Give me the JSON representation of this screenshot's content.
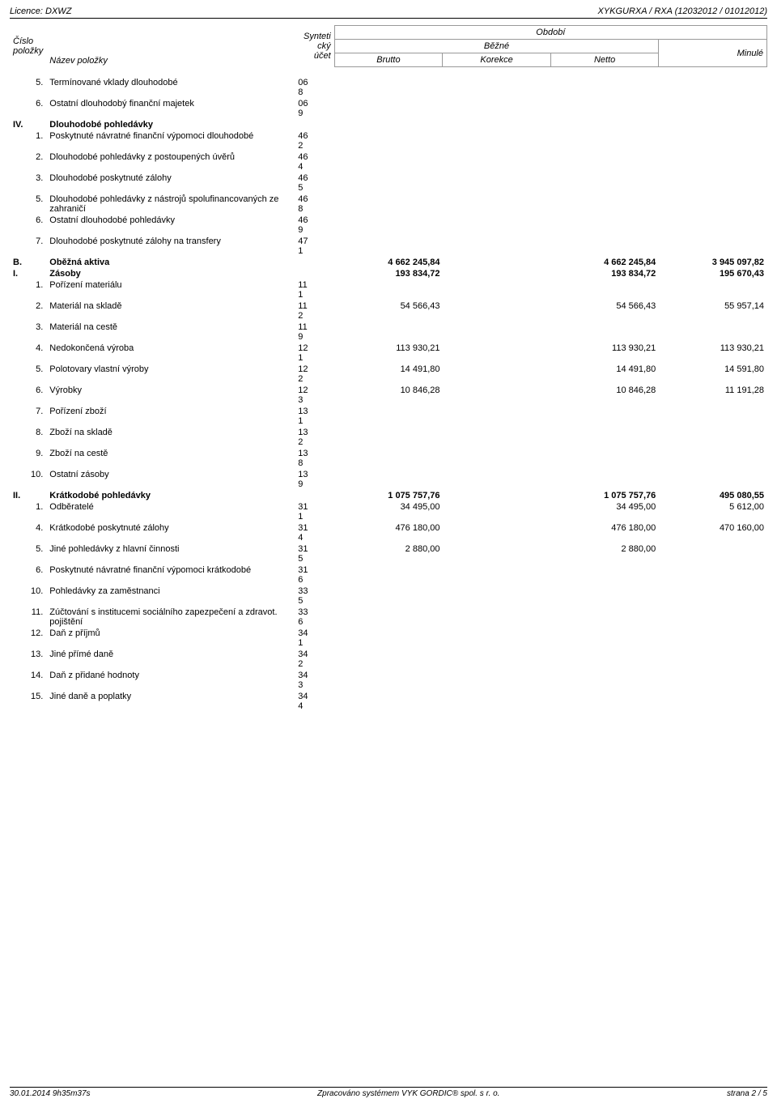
{
  "topbar": {
    "licence": "Licence: DXWZ",
    "right": "XYKGURXA / RXA (12032012 / 01012012)"
  },
  "header": {
    "cislo": "Číslo",
    "polozky": "položky",
    "nazev": "Název položky",
    "synteticky1": "Synteti",
    "synteticky2": "cký",
    "ucet": "účet",
    "obdobi": "Období",
    "bezne": "Běžné",
    "minule": "Minulé",
    "brutto": "Brutto",
    "korekce": "Korekce",
    "netto": "Netto"
  },
  "rows": [
    {
      "cislo": "",
      "sub": "5.",
      "nazev": "Termínované vklady dlouhodobé",
      "ucet1": "06",
      "ucet2": "8",
      "brutto": "",
      "korekce": "",
      "netto": "",
      "minule": ""
    },
    {
      "cislo": "",
      "sub": "6.",
      "nazev": "Ostatní dlouhodobý finanční majetek",
      "ucet1": "06",
      "ucet2": "9",
      "brutto": "",
      "korekce": "",
      "netto": "",
      "minule": ""
    },
    {
      "cislo": "IV.",
      "sub": "",
      "nazev": "Dlouhodobé pohledávky",
      "ucet1": "",
      "ucet2": "",
      "brutto": "",
      "korekce": "",
      "netto": "",
      "minule": "",
      "bold": true
    },
    {
      "cislo": "",
      "sub": "1.",
      "nazev": "Poskytnuté návratné finanční výpomoci dlouhodobé",
      "ucet1": "46",
      "ucet2": "2",
      "brutto": "",
      "korekce": "",
      "netto": "",
      "minule": ""
    },
    {
      "cislo": "",
      "sub": "2.",
      "nazev": "Dlouhodobé pohledávky z postoupených úvěrů",
      "ucet1": "46",
      "ucet2": "4",
      "brutto": "",
      "korekce": "",
      "netto": "",
      "minule": ""
    },
    {
      "cislo": "",
      "sub": "3.",
      "nazev": "Dlouhodobé poskytnuté zálohy",
      "ucet1": "46",
      "ucet2": "5",
      "brutto": "",
      "korekce": "",
      "netto": "",
      "minule": ""
    },
    {
      "cislo": "",
      "sub": "5.",
      "nazev": "Dlouhodobé pohledávky z nástrojů spolufinancovaných ze zahraničí",
      "ucet1": "46",
      "ucet2": "8",
      "brutto": "",
      "korekce": "",
      "netto": "",
      "minule": ""
    },
    {
      "cislo": "",
      "sub": "6.",
      "nazev": "Ostatní dlouhodobé pohledávky",
      "ucet1": "46",
      "ucet2": "9",
      "brutto": "",
      "korekce": "",
      "netto": "",
      "minule": ""
    },
    {
      "cislo": "",
      "sub": "7.",
      "nazev": "Dlouhodobé poskytnuté zálohy na transfery",
      "ucet1": "47",
      "ucet2": "1",
      "brutto": "",
      "korekce": "",
      "netto": "",
      "minule": ""
    },
    {
      "cislo": "B.",
      "sub": "",
      "nazev": "Oběžná aktiva",
      "ucet1": "",
      "ucet2": "",
      "brutto": "4 662 245,84",
      "korekce": "",
      "netto": "4 662 245,84",
      "minule": "3 945 097,82",
      "bold": true,
      "section": true
    },
    {
      "cislo": "I.",
      "sub": "",
      "nazev": "Zásoby",
      "ucet1": "",
      "ucet2": "",
      "brutto": "193 834,72",
      "korekce": "",
      "netto": "193 834,72",
      "minule": "195 670,43",
      "bold": true
    },
    {
      "cislo": "",
      "sub": "1.",
      "nazev": "Pořízení materiálu",
      "ucet1": "11",
      "ucet2": "1",
      "brutto": "",
      "korekce": "",
      "netto": "",
      "minule": ""
    },
    {
      "cislo": "",
      "sub": "2.",
      "nazev": "Materiál na skladě",
      "ucet1": "11",
      "ucet2": "2",
      "brutto": "54 566,43",
      "korekce": "",
      "netto": "54 566,43",
      "minule": "55 957,14"
    },
    {
      "cislo": "",
      "sub": "3.",
      "nazev": "Materiál na cestě",
      "ucet1": "11",
      "ucet2": "9",
      "brutto": "",
      "korekce": "",
      "netto": "",
      "minule": ""
    },
    {
      "cislo": "",
      "sub": "4.",
      "nazev": "Nedokončená výroba",
      "ucet1": "12",
      "ucet2": "1",
      "brutto": "113 930,21",
      "korekce": "",
      "netto": "113 930,21",
      "minule": "113 930,21"
    },
    {
      "cislo": "",
      "sub": "5.",
      "nazev": "Polotovary vlastní výroby",
      "ucet1": "12",
      "ucet2": "2",
      "brutto": "14 491,80",
      "korekce": "",
      "netto": "14 491,80",
      "minule": "14 591,80"
    },
    {
      "cislo": "",
      "sub": "6.",
      "nazev": "Výrobky",
      "ucet1": "12",
      "ucet2": "3",
      "brutto": "10 846,28",
      "korekce": "",
      "netto": "10 846,28",
      "minule": "11 191,28"
    },
    {
      "cislo": "",
      "sub": "7.",
      "nazev": "Pořízení zboží",
      "ucet1": "13",
      "ucet2": "1",
      "brutto": "",
      "korekce": "",
      "netto": "",
      "minule": ""
    },
    {
      "cislo": "",
      "sub": "8.",
      "nazev": "Zboží na skladě",
      "ucet1": "13",
      "ucet2": "2",
      "brutto": "",
      "korekce": "",
      "netto": "",
      "minule": ""
    },
    {
      "cislo": "",
      "sub": "9.",
      "nazev": "Zboží na cestě",
      "ucet1": "13",
      "ucet2": "8",
      "brutto": "",
      "korekce": "",
      "netto": "",
      "minule": ""
    },
    {
      "cislo": "",
      "sub": "10.",
      "nazev": "Ostatní zásoby",
      "ucet1": "13",
      "ucet2": "9",
      "brutto": "",
      "korekce": "",
      "netto": "",
      "minule": ""
    },
    {
      "cislo": "II.",
      "sub": "",
      "nazev": "Krátkodobé pohledávky",
      "ucet1": "",
      "ucet2": "",
      "brutto": "1 075 757,76",
      "korekce": "",
      "netto": "1 075 757,76",
      "minule": "495 080,55",
      "bold": true
    },
    {
      "cislo": "",
      "sub": "1.",
      "nazev": "Odběratelé",
      "ucet1": "31",
      "ucet2": "1",
      "brutto": "34 495,00",
      "korekce": "",
      "netto": "34 495,00",
      "minule": "5 612,00"
    },
    {
      "cislo": "",
      "sub": "4.",
      "nazev": "Krátkodobé poskytnuté zálohy",
      "ucet1": "31",
      "ucet2": "4",
      "brutto": "476 180,00",
      "korekce": "",
      "netto": "476 180,00",
      "minule": "470 160,00"
    },
    {
      "cislo": "",
      "sub": "5.",
      "nazev": "Jiné pohledávky z hlavní činnosti",
      "ucet1": "31",
      "ucet2": "5",
      "brutto": "2 880,00",
      "korekce": "",
      "netto": "2 880,00",
      "minule": ""
    },
    {
      "cislo": "",
      "sub": "6.",
      "nazev": "Poskytnuté návratné finanční výpomoci krátkodobé",
      "ucet1": "31",
      "ucet2": "6",
      "brutto": "",
      "korekce": "",
      "netto": "",
      "minule": ""
    },
    {
      "cislo": "",
      "sub": "10.",
      "nazev": "Pohledávky za zaměstnanci",
      "ucet1": "33",
      "ucet2": "5",
      "brutto": "",
      "korekce": "",
      "netto": "",
      "minule": ""
    },
    {
      "cislo": "",
      "sub": "11.",
      "nazev": "Zúčtování s institucemi sociálního zapezpečení a zdravot. pojištění",
      "ucet1": "33",
      "ucet2": "6",
      "brutto": "",
      "korekce": "",
      "netto": "",
      "minule": ""
    },
    {
      "cislo": "",
      "sub": "12.",
      "nazev": "Daň z příjmů",
      "ucet1": "34",
      "ucet2": "1",
      "brutto": "",
      "korekce": "",
      "netto": "",
      "minule": ""
    },
    {
      "cislo": "",
      "sub": "13.",
      "nazev": "Jiné přímé daně",
      "ucet1": "34",
      "ucet2": "2",
      "brutto": "",
      "korekce": "",
      "netto": "",
      "minule": ""
    },
    {
      "cislo": "",
      "sub": "14.",
      "nazev": "Daň z přidané hodnoty",
      "ucet1": "34",
      "ucet2": "3",
      "brutto": "",
      "korekce": "",
      "netto": "",
      "minule": ""
    },
    {
      "cislo": "",
      "sub": "15.",
      "nazev": "Jiné daně a poplatky",
      "ucet1": "34",
      "ucet2": "4",
      "brutto": "",
      "korekce": "",
      "netto": "",
      "minule": ""
    }
  ],
  "footer": {
    "left": "30.01.2014 9h35m37s",
    "center": "Zpracováno systémem VYK GORDIC® spol. s r. o.",
    "right": "strana 2 / 5"
  }
}
